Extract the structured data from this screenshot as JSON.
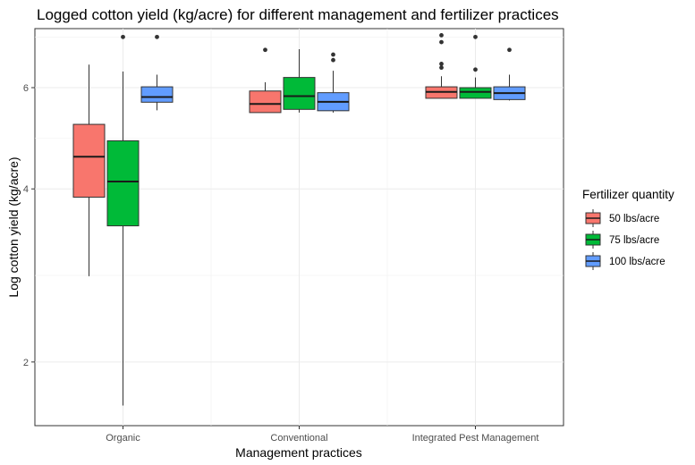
{
  "chart_data": {
    "type": "boxplot",
    "title": "Logged cotton yield (kg/acre) for different management and fertilizer practices",
    "xlabel": "Management practices",
    "ylabel": "Log cotton yield (kg/acre)",
    "y_scale": "log",
    "ylim": [
      1.55,
      7.6
    ],
    "yticks": [
      2,
      4,
      6
    ],
    "grid": true,
    "legend_position": "right",
    "legend_title": "Fertilizer quantity",
    "categories": [
      "Organic",
      "Conventional",
      "Integrated Pest Management"
    ],
    "series": [
      {
        "name": "50 lbs/acre",
        "color": "#F8766D",
        "boxes": [
          {
            "min": 2.82,
            "q1": 3.87,
            "median": 4.55,
            "q3": 5.18,
            "max": 6.58,
            "outliers": []
          },
          {
            "min": 5.43,
            "q1": 5.43,
            "median": 5.62,
            "q3": 5.92,
            "max": 6.13,
            "outliers": [
              6.98
            ]
          },
          {
            "min": 5.75,
            "q1": 5.75,
            "median": 5.9,
            "q3": 6.02,
            "max": 6.28,
            "outliers": [
              6.5,
              6.6,
              7.2,
              7.4
            ]
          }
        ]
      },
      {
        "name": "75 lbs/acre",
        "color": "#00BA38",
        "boxes": [
          {
            "min": 1.68,
            "q1": 3.45,
            "median": 4.12,
            "q3": 4.85,
            "max": 6.4,
            "outliers": [
              7.35
            ]
          },
          {
            "min": 5.43,
            "q1": 5.5,
            "median": 5.8,
            "q3": 6.25,
            "max": 7.0,
            "outliers": []
          },
          {
            "min": 5.75,
            "q1": 5.75,
            "median": 5.9,
            "q3": 6.0,
            "max": 6.25,
            "outliers": [
              6.45,
              7.35
            ]
          }
        ]
      },
      {
        "name": "100 lbs/acre",
        "color": "#619CFF",
        "boxes": [
          {
            "min": 5.48,
            "q1": 5.66,
            "median": 5.78,
            "q3": 6.02,
            "max": 6.32,
            "outliers": [
              7.35
            ]
          },
          {
            "min": 5.43,
            "q1": 5.47,
            "median": 5.67,
            "q3": 5.88,
            "max": 6.42,
            "outliers": [
              6.7,
              6.85
            ]
          },
          {
            "min": 5.7,
            "q1": 5.72,
            "median": 5.87,
            "q3": 6.02,
            "max": 6.32,
            "outliers": [
              6.98
            ]
          }
        ]
      }
    ]
  }
}
